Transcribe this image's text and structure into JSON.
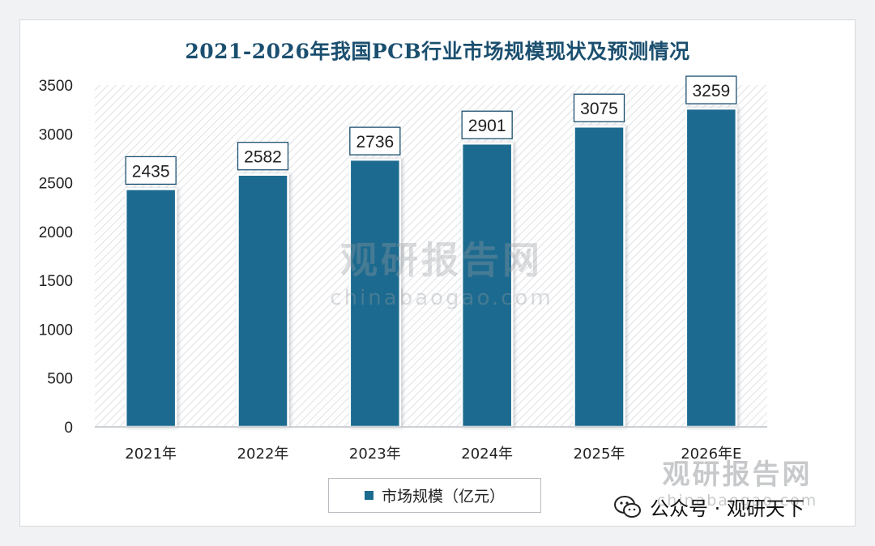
{
  "chart_data": {
    "type": "bar",
    "title": "2021-2026年我国PCB行业市场规模现状及预测情况",
    "categories": [
      "2021年",
      "2022年",
      "2023年",
      "2024年",
      "2025年",
      "2026年E"
    ],
    "series": [
      {
        "name": "市场规模（亿元）",
        "values": [
          2435,
          2582,
          2736,
          2901,
          3075,
          3259
        ]
      }
    ],
    "yticks": [
      "0",
      "500",
      "1000",
      "1500",
      "2000",
      "2500",
      "3000",
      "3500"
    ],
    "ylim": [
      0,
      3500
    ],
    "grid": false,
    "legend_position": "bottom",
    "colors": {
      "bar": "#1b6b8f",
      "title": "#1b4f6f"
    }
  },
  "watermark": {
    "brand": "观研报告网",
    "domain": "chinabaogao.com"
  },
  "wechat": {
    "label": "公众号 · 观研天下",
    "icon": "wechat-icon"
  }
}
